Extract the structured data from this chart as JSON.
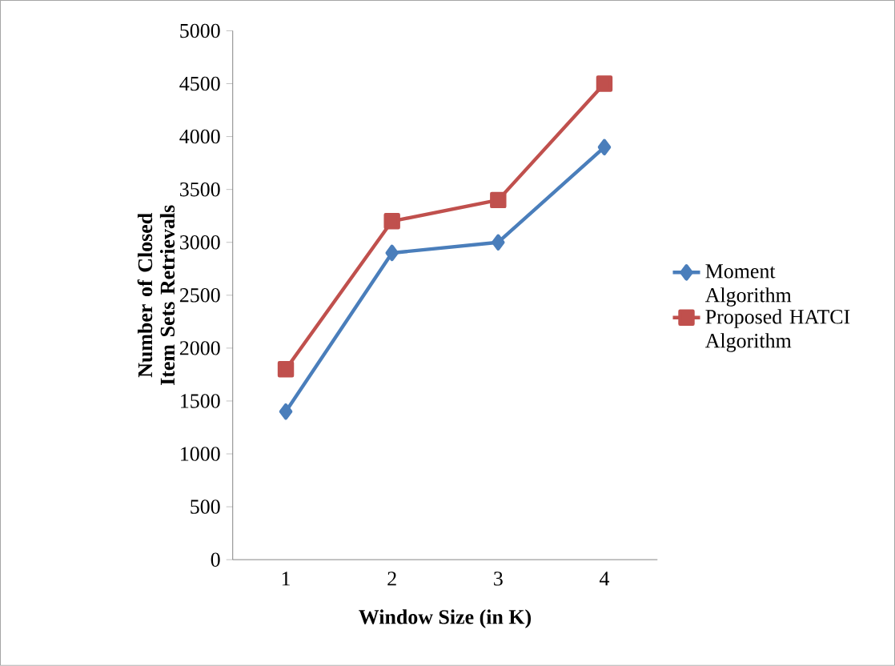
{
  "chart_data": {
    "type": "line",
    "xlabel": "Window Size (in K)",
    "ylabel": "Number of Closed Item Sets Retrievals",
    "categories": [
      "1",
      "2",
      "3",
      "4"
    ],
    "series": [
      {
        "name": "Moment Algorithm",
        "color": "#4a7ebb",
        "marker": "diamond",
        "values": [
          1400,
          2900,
          3000,
          3900
        ]
      },
      {
        "name": "Proposed HATCI Algorithm",
        "color": "#c0504d",
        "marker": "square",
        "values": [
          1800,
          3200,
          3400,
          4500
        ]
      }
    ],
    "ylim": [
      0,
      5000
    ],
    "yticks": [
      0,
      500,
      1000,
      1500,
      2000,
      2500,
      3000,
      3500,
      4000,
      4500,
      5000
    ],
    "grid": false,
    "legend": "right"
  }
}
